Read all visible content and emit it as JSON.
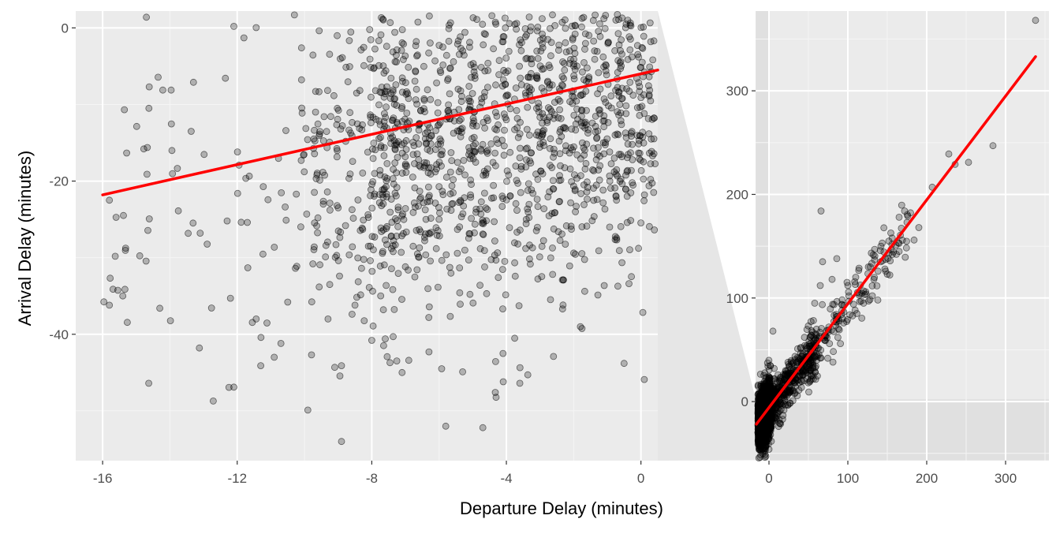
{
  "chart_data": [
    {
      "type": "scatter",
      "panel": "zoomed",
      "title": "",
      "xlabel": "Departure Delay (minutes)",
      "ylabel": "Arrival Delay (minutes)",
      "xlim": [
        -16.8,
        0.5
      ],
      "ylim": [
        -56.5,
        2.2
      ],
      "x_ticks": [
        -16,
        -12,
        -8,
        -4,
        0
      ],
      "x_tick_labels": [
        "-16",
        "-12",
        "-8",
        "-4",
        "0"
      ],
      "y_ticks": [
        0,
        -20,
        -40
      ],
      "y_tick_labels": [
        "0",
        "-20",
        "-40"
      ],
      "grid": true,
      "point_color": "#000000",
      "point_alpha": 0.25,
      "regression_line": {
        "x": [
          -16,
          0.5
        ],
        "y": [
          -21.8,
          -5.5
        ],
        "color": "#ff0000"
      },
      "points_sample": [
        {
          "x": -15.8,
          "y": -22.5
        },
        {
          "x": -15.8,
          "y": -36.2
        },
        {
          "x": -15.4,
          "y": -35.0
        },
        {
          "x": -14.3,
          "y": -36.6
        },
        {
          "x": -14.7,
          "y": 1.4
        },
        {
          "x": -13.1,
          "y": -26.8
        },
        {
          "x": -13.3,
          "y": -7.1
        },
        {
          "x": -12.3,
          "y": -25.2
        },
        {
          "x": -12.2,
          "y": -35.3
        },
        {
          "x": -12.1,
          "y": -46.9
        },
        {
          "x": -12.1,
          "y": 0.2
        },
        {
          "x": -11.8,
          "y": -1.3
        },
        {
          "x": -11.7,
          "y": -25.4
        },
        {
          "x": -11.3,
          "y": -44.1
        },
        {
          "x": -10.9,
          "y": -43.0
        },
        {
          "x": -10.7,
          "y": -41.2
        },
        {
          "x": -10.5,
          "y": -35.8
        },
        {
          "x": -10.3,
          "y": 1.7
        },
        {
          "x": -9.9,
          "y": -49.9
        },
        {
          "x": -9.6,
          "y": -24.8
        },
        {
          "x": -9.3,
          "y": -38.0
        },
        {
          "x": -8.9,
          "y": -54.0
        },
        {
          "x": -8.9,
          "y": -44.1
        },
        {
          "x": -8.5,
          "y": -36.2
        },
        {
          "x": -8.0,
          "y": -40.8
        },
        {
          "x": -7.6,
          "y": -40.6
        },
        {
          "x": -7.1,
          "y": -45.0
        },
        {
          "x": -6.9,
          "y": -43.4
        },
        {
          "x": -6.3,
          "y": -42.3
        },
        {
          "x": -5.8,
          "y": -52.0
        },
        {
          "x": -5.3,
          "y": -44.9
        },
        {
          "x": -4.7,
          "y": -52.2
        },
        {
          "x": -4.1,
          "y": -42.5
        },
        {
          "x": -3.6,
          "y": -46.4
        },
        {
          "x": -2.6,
          "y": -42.9
        },
        {
          "x": -1.8,
          "y": -39.0
        },
        {
          "x": -0.5,
          "y": -43.8
        },
        {
          "x": 0.1,
          "y": -45.9
        },
        {
          "x": -6.0,
          "y": -25.0
        },
        {
          "x": -4.0,
          "y": -12.0
        },
        {
          "x": -2.0,
          "y": -5.0
        },
        {
          "x": -7.0,
          "y": -18.0
        }
      ],
      "point_count": 1400
    },
    {
      "type": "scatter",
      "panel": "overview",
      "title": "",
      "xlabel": "",
      "ylabel": "",
      "xlim": [
        -17,
        355
      ],
      "ylim": [
        -57,
        377
      ],
      "x_ticks": [
        0,
        100,
        200,
        300
      ],
      "x_tick_labels": [
        "0",
        "100",
        "200",
        "300"
      ],
      "y_ticks": [
        0,
        100,
        200,
        300
      ],
      "y_tick_labels": [
        "0",
        "100",
        "200",
        "300"
      ],
      "grid": true,
      "point_color": "#000000",
      "point_alpha": 0.25,
      "zoom_region": {
        "x": [
          -16.8,
          0.5
        ],
        "y": [
          -56.5,
          2.2
        ]
      },
      "regression_line": {
        "x": [
          -16,
          338
        ],
        "y": [
          -21.8,
          333
        ],
        "color": "#ff0000"
      },
      "points_sample": [
        {
          "x": 338,
          "y": 368
        },
        {
          "x": 284,
          "y": 247
        },
        {
          "x": 253,
          "y": 231
        },
        {
          "x": 228,
          "y": 239
        },
        {
          "x": 236,
          "y": 229
        },
        {
          "x": 207,
          "y": 207
        },
        {
          "x": 175,
          "y": 173
        },
        {
          "x": 172,
          "y": 184
        },
        {
          "x": 165,
          "y": 178
        },
        {
          "x": 176,
          "y": 179
        },
        {
          "x": 190,
          "y": 168
        },
        {
          "x": 184,
          "y": 156
        },
        {
          "x": 165,
          "y": 145
        },
        {
          "x": 152,
          "y": 155
        },
        {
          "x": 142,
          "y": 150
        },
        {
          "x": 147,
          "y": 128
        },
        {
          "x": 138,
          "y": 98
        },
        {
          "x": 150,
          "y": 123
        },
        {
          "x": 126,
          "y": 130
        },
        {
          "x": 110,
          "y": 120
        },
        {
          "x": 100,
          "y": 112
        },
        {
          "x": 66,
          "y": 184
        },
        {
          "x": 68,
          "y": 135
        },
        {
          "x": 86,
          "y": 138
        },
        {
          "x": 80,
          "y": 118
        },
        {
          "x": 120,
          "y": 95
        },
        {
          "x": 65,
          "y": 112
        },
        {
          "x": 58,
          "y": 95
        },
        {
          "x": 92,
          "y": 84
        },
        {
          "x": 86,
          "y": 77
        },
        {
          "x": 75,
          "y": 67
        },
        {
          "x": 45,
          "y": 62
        },
        {
          "x": 40,
          "y": 41
        },
        {
          "x": 30,
          "y": 20
        },
        {
          "x": 12,
          "y": 7
        },
        {
          "x": 0,
          "y": -46
        },
        {
          "x": 5,
          "y": 68
        }
      ],
      "point_count": 2100
    }
  ]
}
